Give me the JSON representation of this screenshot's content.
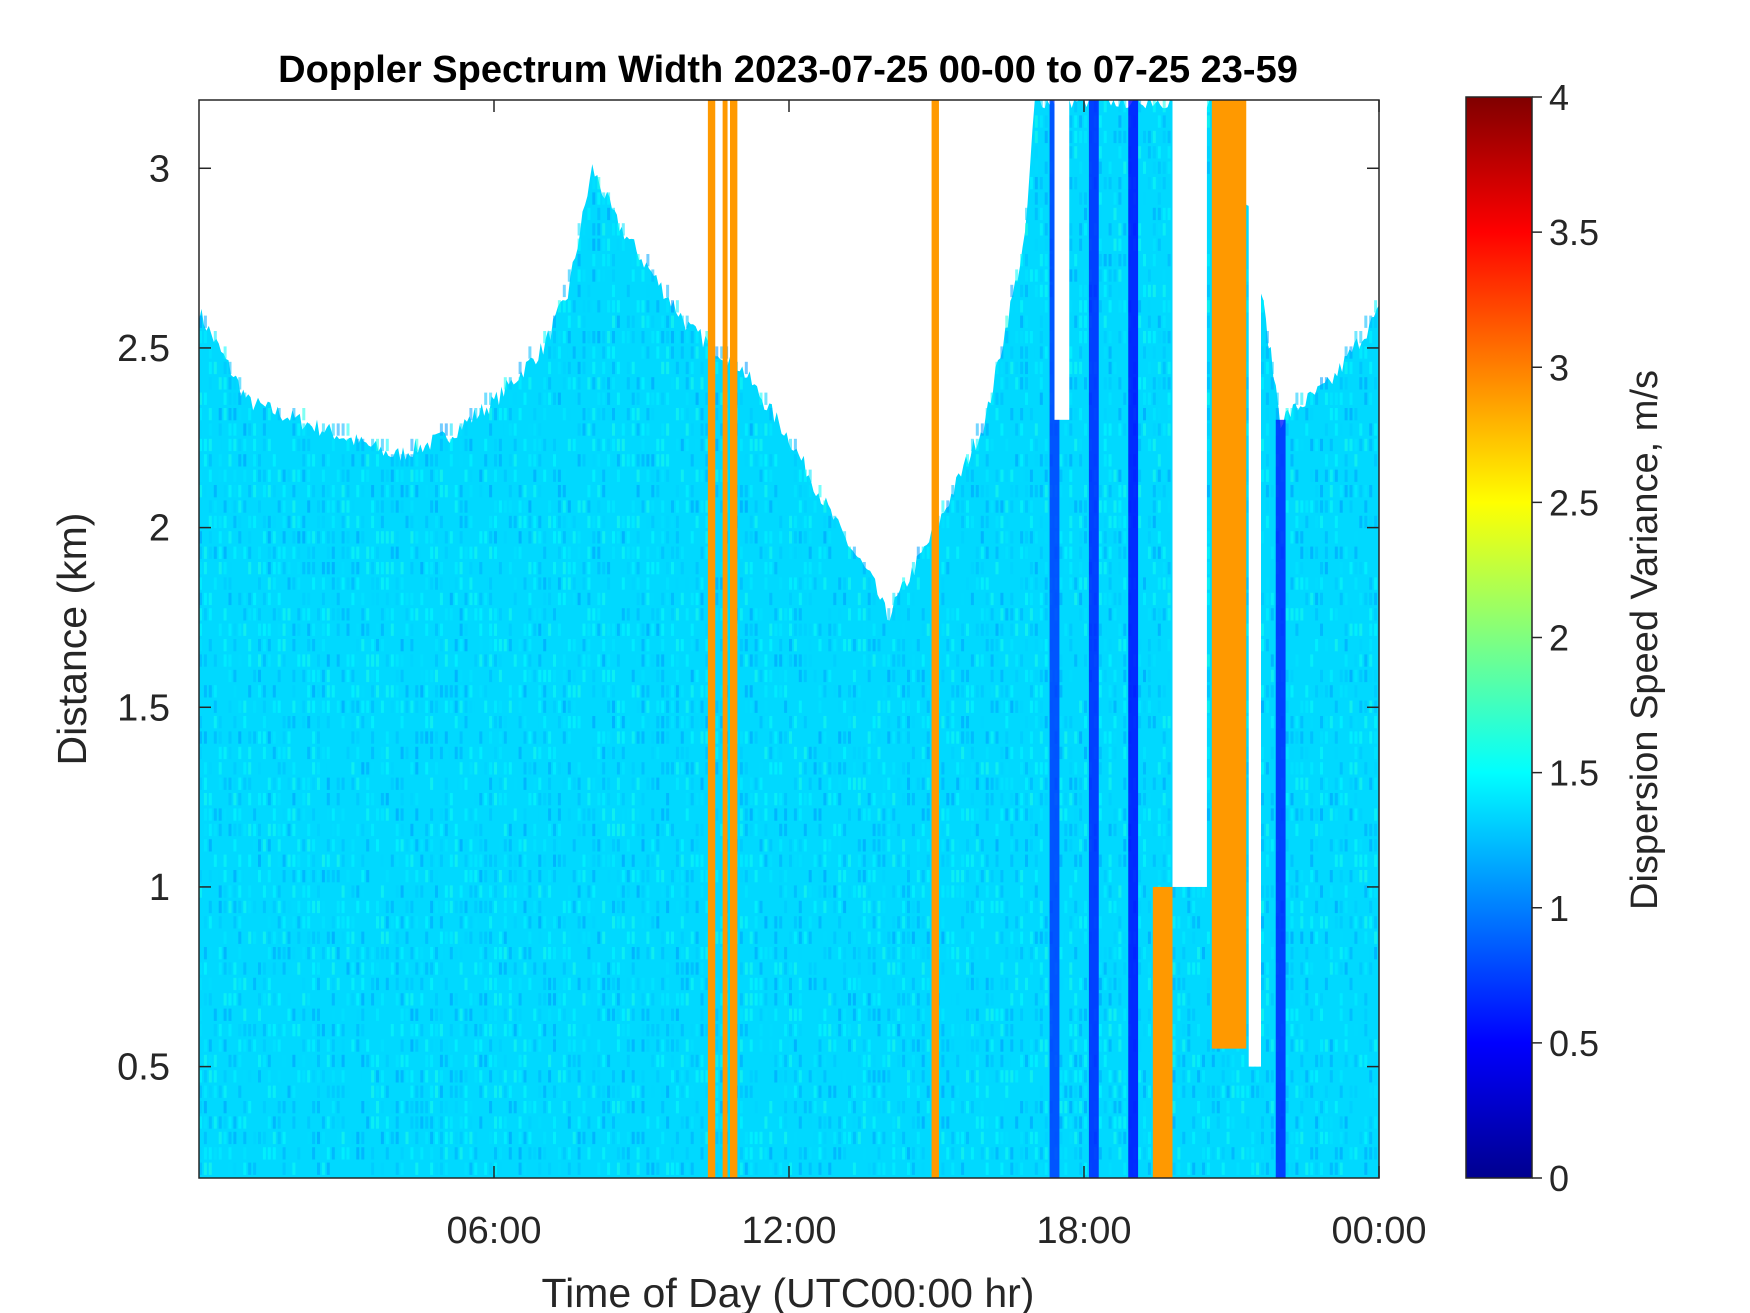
{
  "chart_data": {
    "type": "heatmap",
    "title": "Doppler Spectrum Width 2023-07-25 00-00 to 07-25 23-59",
    "xlabel": "Time of Day (UTC00:00 hr)",
    "ylabel": "Distance (km)",
    "colorbar_label": "Dispersion Speed Variance, m/s",
    "xlim_hours": [
      0,
      24
    ],
    "ylim": [
      0.19,
      3.19
    ],
    "clim": [
      0,
      4
    ],
    "colormap": "jet",
    "x_ticks": [
      {
        "value": 6,
        "label": "06:00"
      },
      {
        "value": 12,
        "label": "12:00"
      },
      {
        "value": 18,
        "label": "18:00"
      },
      {
        "value": 24,
        "label": "00:00"
      }
    ],
    "y_ticks": [
      {
        "value": 0.5,
        "label": "0.5"
      },
      {
        "value": 1,
        "label": "1"
      },
      {
        "value": 1.5,
        "label": "1.5"
      },
      {
        "value": 2,
        "label": "2"
      },
      {
        "value": 2.5,
        "label": "2.5"
      },
      {
        "value": 3,
        "label": "3"
      }
    ],
    "c_ticks": [
      {
        "value": 0,
        "label": "0"
      },
      {
        "value": 0.5,
        "label": "0.5"
      },
      {
        "value": 1,
        "label": "1"
      },
      {
        "value": 1.5,
        "label": "1.5"
      },
      {
        "value": 2,
        "label": "2"
      },
      {
        "value": 2.5,
        "label": "2.5"
      },
      {
        "value": 3,
        "label": "3"
      },
      {
        "value": 3.5,
        "label": "3.5"
      },
      {
        "value": 4,
        "label": "4"
      }
    ],
    "data_top_km": [
      [
        0,
        2.6
      ],
      [
        1,
        2.35
      ],
      [
        2,
        2.3
      ],
      [
        3,
        2.25
      ],
      [
        4,
        2.2
      ],
      [
        5,
        2.25
      ],
      [
        6,
        2.35
      ],
      [
        7,
        2.5
      ],
      [
        7.5,
        2.65
      ],
      [
        8,
        3.0
      ],
      [
        8.5,
        2.85
      ],
      [
        9,
        2.75
      ],
      [
        10,
        2.55
      ],
      [
        11,
        2.45
      ],
      [
        12,
        2.25
      ],
      [
        13,
        2.0
      ],
      [
        13.7,
        1.85
      ],
      [
        14,
        1.75
      ],
      [
        15,
        2.0
      ],
      [
        16,
        2.3
      ],
      [
        16.8,
        2.8
      ],
      [
        17,
        3.19
      ],
      [
        19,
        3.19
      ],
      [
        19.2,
        3.19
      ],
      [
        19.5,
        3.19
      ],
      [
        20,
        3.19
      ],
      [
        21,
        3.19
      ],
      [
        22,
        2.3
      ],
      [
        23,
        2.4
      ],
      [
        24,
        2.6
      ]
    ],
    "background_value_mps": 1.35,
    "saturated_columns_hours": [
      {
        "start": 10.35,
        "end": 10.5,
        "value": 2.9
      },
      {
        "start": 10.65,
        "end": 10.75,
        "value": 2.9
      },
      {
        "start": 10.8,
        "end": 10.95,
        "value": 2.9
      },
      {
        "start": 14.9,
        "end": 15.05,
        "value": 2.9
      },
      {
        "start": 19.4,
        "end": 19.8,
        "value": 2.9,
        "top_km": 1.0
      },
      {
        "start": 20.6,
        "end": 21.3,
        "value": 2.9,
        "bottom_km": 0.55
      }
    ],
    "low_variance_columns_hours": [
      {
        "start": 17.3,
        "end": 17.5,
        "value": 0.7
      },
      {
        "start": 18.1,
        "end": 18.3,
        "value": 0.6
      },
      {
        "start": 18.9,
        "end": 19.1,
        "value": 0.5
      },
      {
        "start": 21.9,
        "end": 22.1,
        "value": 0.6
      }
    ],
    "no_data_gaps_hours": [
      {
        "start": 19.8,
        "end": 20.5,
        "from_km": 1.0
      },
      {
        "start": 21.35,
        "end": 21.6,
        "from_km": 0.5
      },
      {
        "start": 17.4,
        "end": 17.7,
        "from_km": 2.3
      }
    ]
  }
}
